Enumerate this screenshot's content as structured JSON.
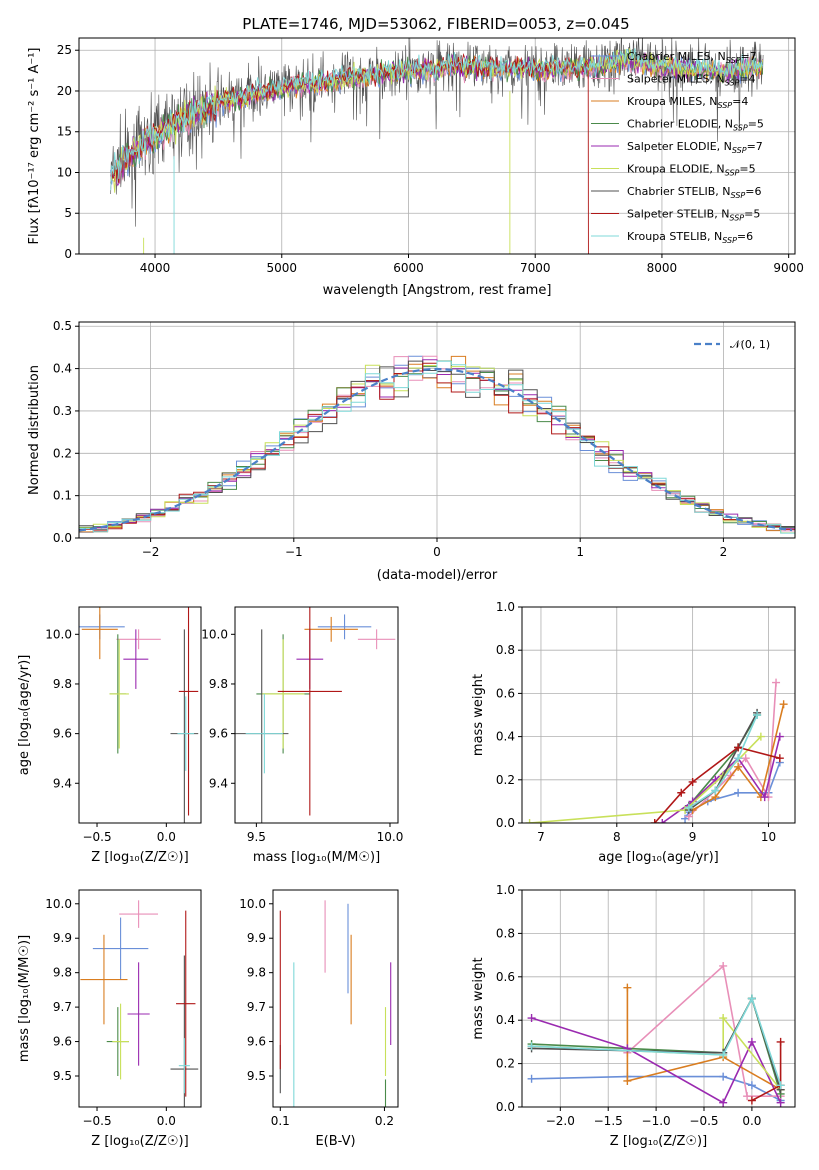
{
  "palette": [
    "#6a8fd8",
    "#e88fb8",
    "#d97d20",
    "#4a8a4a",
    "#9a2ab0",
    "#c8e05a",
    "#505050",
    "#b01818",
    "#7fd8d8"
  ],
  "figure_title": "PLATE=1746, MJD=53062, FIBERID=0053, z=0.045",
  "chart_data": [
    {
      "id": "spectrum",
      "type": "line",
      "title": "PLATE=1746, MJD=53062, FIBERID=0053, z=0.045",
      "xlabel": "wavelength [Angstrom, rest frame]",
      "ylabel": "Flux [fλ10⁻¹⁷ erg cm⁻² s⁻¹ A⁻¹]",
      "xlim": [
        3400,
        9050
      ],
      "ylim": [
        0,
        26.5
      ],
      "xticks": [
        4000,
        5000,
        6000,
        7000,
        8000,
        9000
      ],
      "yticks": [
        0,
        5,
        10,
        15,
        20,
        25
      ],
      "grid": true,
      "legend": "top-right",
      "legend_entries": [
        {
          "lib": "Chabrier MILES, N",
          "sub": "SSP",
          "eq": "=7"
        },
        {
          "lib": "Salpeter MILES, N",
          "sub": "SSP",
          "eq": "=4"
        },
        {
          "lib": "Kroupa MILES, N",
          "sub": "SSP",
          "eq": "=4"
        },
        {
          "lib": "Chabrier ELODIE, N",
          "sub": "SSP",
          "eq": "=5"
        },
        {
          "lib": "Salpeter ELODIE, N",
          "sub": "SSP",
          "eq": "=7"
        },
        {
          "lib": "Kroupa ELODIE, N",
          "sub": "SSP",
          "eq": "=5"
        },
        {
          "lib": "Chabrier STELIB, N",
          "sub": "SSP",
          "eq": "=6"
        },
        {
          "lib": "Salpeter STELIB, N",
          "sub": "SSP",
          "eq": "=5"
        },
        {
          "lib": "Kroupa STELIB, N",
          "sub": "SSP",
          "eq": "=6"
        }
      ],
      "continuum": [
        [
          3650,
          9.5
        ],
        [
          3800,
          12
        ],
        [
          4000,
          14.5
        ],
        [
          4200,
          16.5
        ],
        [
          4500,
          18.5
        ],
        [
          5000,
          20.5
        ],
        [
          5500,
          21.5
        ],
        [
          6000,
          22.5
        ],
        [
          6500,
          23
        ],
        [
          7000,
          22.7
        ],
        [
          7500,
          23
        ],
        [
          7700,
          24
        ],
        [
          8000,
          23
        ],
        [
          8500,
          22.5
        ],
        [
          8800,
          23
        ]
      ]
    },
    {
      "id": "residuals",
      "type": "histogram",
      "xlabel": "(data-model)/error",
      "ylabel": "Normed distribution",
      "xlim": [
        -2.5,
        2.5
      ],
      "ylim": [
        0,
        0.51
      ],
      "xticks": [
        -2,
        -1,
        0,
        1,
        2
      ],
      "yticks": [
        0.0,
        0.1,
        0.2,
        0.3,
        0.4,
        0.5
      ],
      "bin_width": 0.1,
      "grid": true,
      "legend": "top-right",
      "legend_label": "𝒩(0, 1)",
      "reference_curve": "normal(0,1)"
    },
    {
      "id": "age-vs-Z",
      "type": "errorbar",
      "xlabel": "Z [log₁₀(Z/Z☉)]",
      "ylabel": "age  [log₁₀(age/yr)]",
      "xlim": [
        -0.63,
        0.25
      ],
      "ylim": [
        9.24,
        10.11
      ],
      "xticks": [
        -0.5,
        0.0
      ],
      "yticks": [
        9.4,
        9.6,
        9.8,
        10.0
      ],
      "points": [
        {
          "x": -0.48,
          "y": 10.03,
          "xerr": 0.18,
          "yerr": 0.05
        },
        {
          "x": -0.2,
          "y": 9.98,
          "xerr": 0.16,
          "yerr": 0.04
        },
        {
          "x": -0.48,
          "y": 10.02,
          "xerr": 0.13,
          "yerr": 0.12
        },
        {
          "x": -0.35,
          "y": 9.76,
          "xerr": 0.06,
          "yerr": 0.24
        },
        {
          "x": -0.22,
          "y": 9.9,
          "xerr": 0.09,
          "yerr": 0.12
        },
        {
          "x": -0.34,
          "y": 9.76,
          "xerr": 0.07,
          "yerr": 0.22
        },
        {
          "x": 0.13,
          "y": 9.6,
          "xerr": 0.1,
          "yerr": 0.42
        },
        {
          "x": 0.16,
          "y": 9.77,
          "xerr": 0.07,
          "yerr": 0.5
        },
        {
          "x": 0.14,
          "y": 9.6,
          "xerr": 0.06,
          "yerr": 0.15
        }
      ]
    },
    {
      "id": "age-vs-mass",
      "type": "errorbar",
      "xlabel": "mass [log₁₀(M/M☉)]",
      "ylabel": "",
      "xlim": [
        9.42,
        10.03
      ],
      "ylim": [
        9.24,
        10.11
      ],
      "xticks": [
        9.5,
        10.0
      ],
      "yticks": [
        9.4,
        9.6,
        9.8,
        10.0
      ],
      "points": [
        {
          "x": 9.83,
          "y": 10.03,
          "xerr": 0.1,
          "yerr": 0.05
        },
        {
          "x": 9.95,
          "y": 9.98,
          "xerr": 0.07,
          "yerr": 0.04
        },
        {
          "x": 9.78,
          "y": 10.02,
          "xerr": 0.1,
          "yerr": 0.05
        },
        {
          "x": 9.6,
          "y": 9.76,
          "xerr": 0.1,
          "yerr": 0.24
        },
        {
          "x": 9.7,
          "y": 9.9,
          "xerr": 0.05,
          "yerr": 0.12
        },
        {
          "x": 9.6,
          "y": 9.76,
          "xerr": 0.08,
          "yerr": 0.22
        },
        {
          "x": 9.52,
          "y": 9.6,
          "xerr": 0.1,
          "yerr": 0.42
        },
        {
          "x": 9.7,
          "y": 9.77,
          "xerr": 0.12,
          "yerr": 0.5
        },
        {
          "x": 9.53,
          "y": 9.6,
          "xerr": 0.07,
          "yerr": 0.16
        }
      ]
    },
    {
      "id": "weight-vs-age",
      "type": "line",
      "xlabel": "age  [log₁₀(age/yr)]",
      "ylabel": "mass weight",
      "xlim": [
        6.75,
        10.35
      ],
      "ylim": [
        0,
        1.0
      ],
      "xticks": [
        7,
        8,
        9,
        10
      ],
      "yticks": [
        0.0,
        0.2,
        0.4,
        0.6,
        0.8,
        1.0
      ],
      "grid": true,
      "series": [
        {
          "points": [
            [
              8.9,
              0.02
            ],
            [
              8.95,
              0.05
            ],
            [
              9.2,
              0.1
            ],
            [
              9.6,
              0.14
            ],
            [
              10.0,
              0.14
            ],
            [
              10.15,
              0.28
            ]
          ]
        },
        {
          "points": [
            [
              8.95,
              0.03
            ],
            [
              9.5,
              0.22
            ],
            [
              9.7,
              0.3
            ],
            [
              10.0,
              0.12
            ],
            [
              10.1,
              0.65
            ]
          ]
        },
        {
          "points": [
            [
              9.0,
              0.06
            ],
            [
              9.3,
              0.12
            ],
            [
              9.6,
              0.26
            ],
            [
              9.9,
              0.12
            ],
            [
              10.2,
              0.55
            ]
          ]
        },
        {
          "points": [
            [
              8.95,
              0.08
            ],
            [
              9.6,
              0.35
            ],
            [
              9.85,
              0.5
            ]
          ]
        },
        {
          "points": [
            [
              8.6,
              0.0
            ],
            [
              9.0,
              0.1
            ],
            [
              9.3,
              0.2
            ],
            [
              9.6,
              0.3
            ],
            [
              9.95,
              0.12
            ],
            [
              10.15,
              0.4
            ]
          ]
        },
        {
          "points": [
            [
              6.85,
              0.0
            ],
            [
              8.9,
              0.06
            ],
            [
              9.4,
              0.22
            ],
            [
              9.9,
              0.4
            ]
          ]
        },
        {
          "points": [
            [
              8.95,
              0.06
            ],
            [
              9.3,
              0.15
            ],
            [
              9.6,
              0.35
            ],
            [
              9.85,
              0.51
            ]
          ]
        },
        {
          "points": [
            [
              8.5,
              0.0
            ],
            [
              8.85,
              0.14
            ],
            [
              9.0,
              0.19
            ],
            [
              9.6,
              0.35
            ],
            [
              10.15,
              0.3
            ]
          ]
        },
        {
          "points": [
            [
              8.95,
              0.07
            ],
            [
              9.3,
              0.15
            ],
            [
              9.6,
              0.3
            ],
            [
              9.85,
              0.5
            ]
          ]
        }
      ]
    },
    {
      "id": "mass-vs-Z",
      "type": "errorbar",
      "xlabel": "Z [log₁₀(Z/Z☉)]",
      "ylabel": "mass [log₁₀(M/M☉)]",
      "xlim": [
        -0.63,
        0.25
      ],
      "ylim": [
        9.41,
        10.04
      ],
      "xticks": [
        -0.5,
        0.0
      ],
      "yticks": [
        9.5,
        9.6,
        9.7,
        9.8,
        9.9,
        10.0
      ],
      "points": [
        {
          "x": -0.33,
          "y": 9.87,
          "xerr": 0.2,
          "yerr": 0.09
        },
        {
          "x": -0.2,
          "y": 9.97,
          "xerr": 0.14,
          "yerr": 0.04
        },
        {
          "x": -0.45,
          "y": 9.78,
          "xerr": 0.17,
          "yerr": 0.13
        },
        {
          "x": -0.35,
          "y": 9.6,
          "xerr": 0.08,
          "yerr": 0.1
        },
        {
          "x": -0.2,
          "y": 9.68,
          "xerr": 0.08,
          "yerr": 0.15
        },
        {
          "x": -0.33,
          "y": 9.6,
          "xerr": 0.06,
          "yerr": 0.11
        },
        {
          "x": 0.13,
          "y": 9.52,
          "xerr": 0.1,
          "yerr": 0.33
        },
        {
          "x": 0.14,
          "y": 9.71,
          "xerr": 0.07,
          "yerr": 0.27
        },
        {
          "x": 0.13,
          "y": 9.53,
          "xerr": 0.04,
          "yerr": 0.08
        }
      ]
    },
    {
      "id": "mass-vs-EBV",
      "type": "errorbar",
      "xlabel": "E(B-V)",
      "ylabel": "",
      "xlim": [
        0.093,
        0.213
      ],
      "ylim": [
        9.41,
        10.04
      ],
      "xticks": [
        0.1,
        0.2
      ],
      "yticks": [
        9.5,
        9.6,
        9.7,
        9.8,
        9.9,
        10.0
      ],
      "points": [
        {
          "x": 0.165,
          "y": 9.87,
          "xerr": 0,
          "yerr": 0.13
        },
        {
          "x": 0.143,
          "y": 9.905,
          "xerr": 0,
          "yerr": 0.105
        },
        {
          "x": 0.168,
          "y": 9.78,
          "xerr": 0,
          "yerr": 0.13
        },
        {
          "x": 0.201,
          "y": 9.45,
          "xerr": 0,
          "yerr": 0.04
        },
        {
          "x": 0.206,
          "y": 9.71,
          "xerr": 0,
          "yerr": 0.12
        },
        {
          "x": 0.201,
          "y": 9.6,
          "xerr": 0,
          "yerr": 0.1
        },
        {
          "x": 0.1,
          "y": 9.52,
          "xerr": 0,
          "yerr": 0.07
        },
        {
          "x": 0.1,
          "y": 9.75,
          "xerr": 0,
          "yerr": 0.23
        },
        {
          "x": 0.113,
          "y": 9.62,
          "xerr": 0,
          "yerr": 0.21
        }
      ]
    },
    {
      "id": "weight-vs-Z",
      "type": "line",
      "xlabel": "Z [log₁₀(Z/Z☉)]",
      "ylabel": "mass weight",
      "xlim": [
        -2.4,
        0.45
      ],
      "ylim": [
        0,
        1.0
      ],
      "xticks": [
        -2.0,
        -1.5,
        -1.0,
        -0.5,
        0.0
      ],
      "yticks": [
        0.0,
        0.2,
        0.4,
        0.6,
        0.8,
        1.0
      ],
      "grid": true,
      "series": [
        {
          "points": [
            [
              -2.3,
              0.13
            ],
            [
              -1.3,
              0.14
            ],
            [
              -0.3,
              0.14
            ],
            [
              0.0,
              0.1
            ],
            [
              0.3,
              0.03
            ]
          ]
        },
        {
          "points": [
            [
              -1.3,
              0.25
            ],
            [
              -0.3,
              0.65
            ],
            [
              -0.05,
              0.05
            ],
            [
              0.3,
              0.05
            ]
          ]
        },
        {
          "points": [
            [
              -1.3,
              0.55
            ],
            [
              -1.3,
              0.12
            ],
            [
              -0.3,
              0.23
            ],
            [
              0.3,
              0.08
            ]
          ]
        },
        {
          "points": [
            [
              -2.3,
              0.29
            ],
            [
              -0.3,
              0.25
            ],
            [
              0.0,
              0.5
            ],
            [
              0.3,
              0.06
            ]
          ]
        },
        {
          "points": [
            [
              -2.3,
              0.41
            ],
            [
              -1.3,
              0.27
            ],
            [
              -0.3,
              0.02
            ],
            [
              0.0,
              0.3
            ],
            [
              0.3,
              0.02
            ]
          ]
        },
        {
          "points": [
            [
              -2.3,
              0.28
            ],
            [
              -0.3,
              0.24
            ],
            [
              -0.3,
              0.41
            ],
            [
              0.3,
              0.08
            ]
          ]
        },
        {
          "points": [
            [
              -2.3,
              0.27
            ],
            [
              -0.3,
              0.25
            ],
            [
              0.0,
              0.5
            ],
            [
              0.3,
              0.08
            ]
          ]
        },
        {
          "points": [
            [
              0.0,
              0.03
            ],
            [
              0.3,
              0.1
            ],
            [
              0.3,
              0.3
            ]
          ]
        },
        {
          "points": [
            [
              -2.3,
              0.28
            ],
            [
              -0.3,
              0.24
            ],
            [
              0.0,
              0.5
            ],
            [
              0.3,
              0.1
            ]
          ]
        }
      ]
    }
  ]
}
